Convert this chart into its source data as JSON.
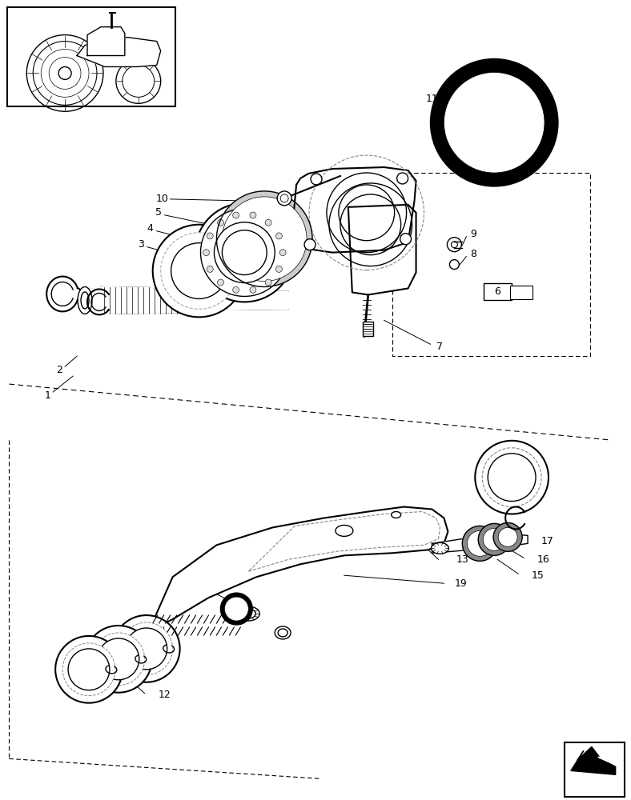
{
  "bg_color": "#ffffff",
  "line_color": "#000000",
  "lw": 1.0,
  "lw_thick": 4.0,
  "lw_med": 1.5
}
